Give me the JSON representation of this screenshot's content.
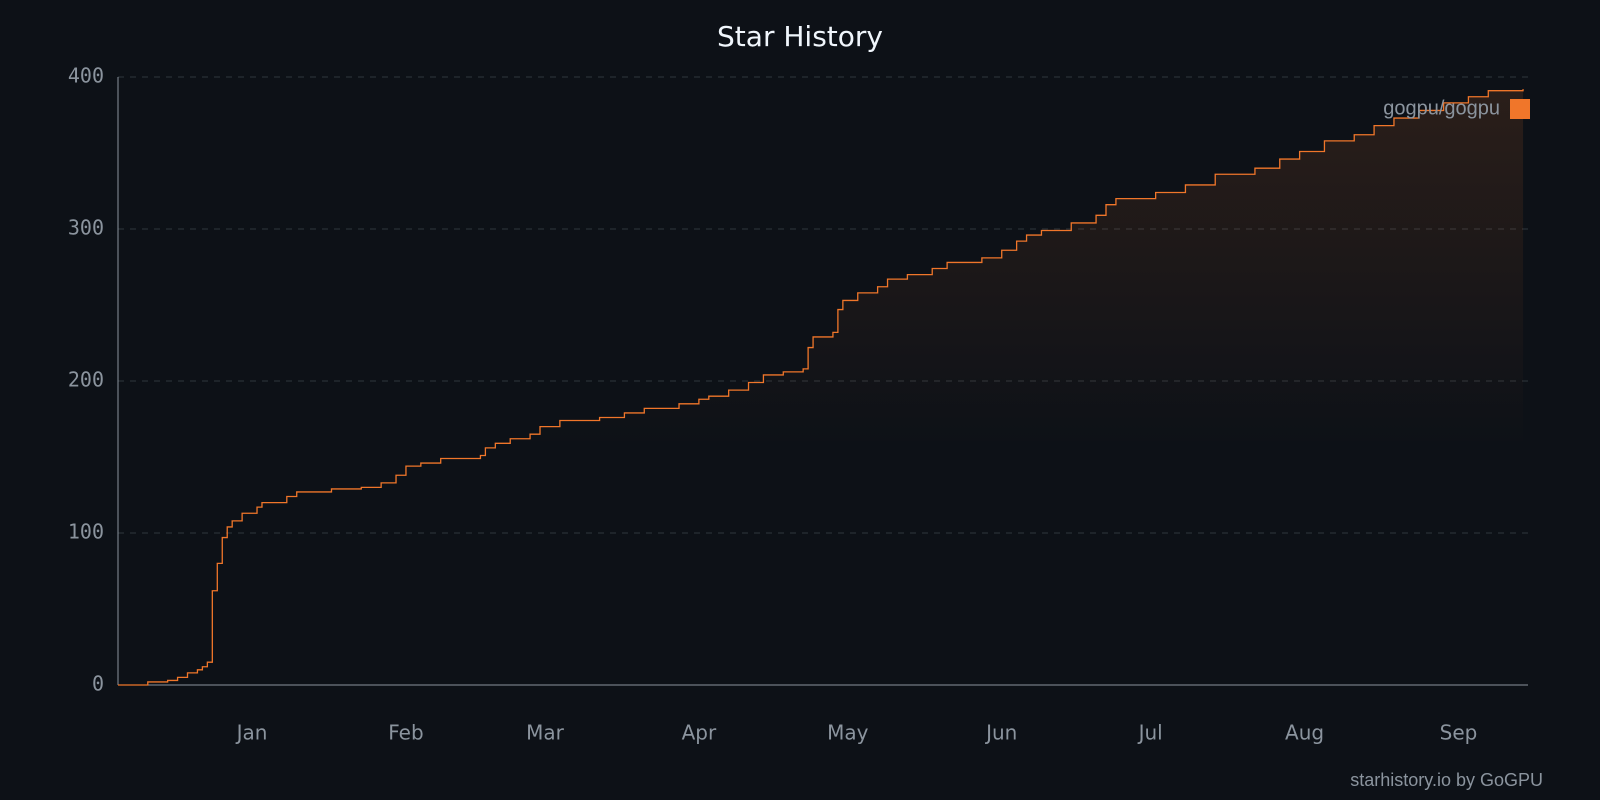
{
  "chart_data": {
    "type": "step",
    "title": "Star History",
    "x": [
      -27,
      -21,
      -17,
      -15,
      -13,
      -11,
      -10,
      -9,
      -8,
      -7,
      -6,
      -5,
      -4,
      -2,
      1,
      2,
      7,
      9,
      16,
      22,
      26,
      29,
      31,
      34,
      38,
      46,
      47,
      49,
      52,
      56,
      58,
      62,
      70,
      75,
      79,
      86,
      90,
      92,
      96,
      100,
      103,
      107,
      111,
      112,
      113,
      117,
      118,
      119,
      122,
      126,
      128,
      132,
      137,
      140,
      147,
      151,
      154,
      156,
      159,
      165,
      170,
      172,
      174,
      182,
      188,
      194,
      202,
      207,
      211,
      216,
      222,
      226,
      230,
      235,
      240,
      245,
      249,
      256
    ],
    "series": [
      {
        "name": "gogpu/gogpu",
        "color": "#f0762a",
        "values": [
          0,
          2,
          3,
          5,
          8,
          10,
          12,
          15,
          62,
          80,
          97,
          104,
          108,
          113,
          117,
          120,
          124,
          127,
          129,
          130,
          133,
          138,
          144,
          146,
          149,
          151,
          156,
          159,
          162,
          165,
          170,
          174,
          176,
          179,
          182,
          185,
          188,
          190,
          194,
          199,
          204,
          206,
          208,
          222,
          229,
          232,
          247,
          253,
          258,
          262,
          267,
          270,
          274,
          278,
          281,
          286,
          292,
          296,
          299,
          304,
          309,
          316,
          320,
          324,
          329,
          336,
          340,
          346,
          351,
          358,
          362,
          368,
          373,
          378,
          383,
          387,
          391,
          392
        ]
      }
    ],
    "xlim": [
      -27,
      257
    ],
    "xticks": [
      {
        "value": 0,
        "label": "Jan"
      },
      {
        "value": 31,
        "label": "Feb"
      },
      {
        "value": 59,
        "label": "Mar"
      },
      {
        "value": 90,
        "label": "Apr"
      },
      {
        "value": 120,
        "label": "May"
      },
      {
        "value": 151,
        "label": "Jun"
      },
      {
        "value": 181,
        "label": "Jul"
      },
      {
        "value": 212,
        "label": "Aug"
      },
      {
        "value": 243,
        "label": "Sep"
      }
    ],
    "ylim": [
      0,
      400
    ],
    "yticks": [
      0,
      100,
      200,
      300,
      400
    ],
    "grid": true,
    "legend": "top-right",
    "watermark": "starhistory.io by GoGPU"
  }
}
